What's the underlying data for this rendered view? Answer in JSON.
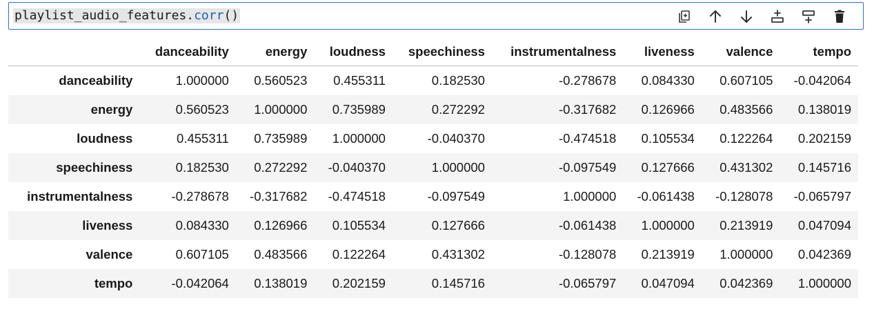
{
  "cell": {
    "code_object": "playlist_audio_features.",
    "code_method": "corr",
    "code_parens": "()"
  },
  "toolbar": {
    "icons": [
      "duplicate-icon",
      "move-up-icon",
      "move-down-icon",
      "insert-above-icon",
      "insert-below-icon",
      "delete-icon"
    ]
  },
  "table": {
    "columns": [
      "danceability",
      "energy",
      "loudness",
      "speechiness",
      "instrumentalness",
      "liveness",
      "valence",
      "tempo"
    ],
    "rows": [
      {
        "label": "danceability",
        "values": [
          "1.000000",
          "0.560523",
          "0.455311",
          "0.182530",
          "-0.278678",
          "0.084330",
          "0.607105",
          "-0.042064"
        ]
      },
      {
        "label": "energy",
        "values": [
          "0.560523",
          "1.000000",
          "0.735989",
          "0.272292",
          "-0.317682",
          "0.126966",
          "0.483566",
          "0.138019"
        ]
      },
      {
        "label": "loudness",
        "values": [
          "0.455311",
          "0.735989",
          "1.000000",
          "-0.040370",
          "-0.474518",
          "0.105534",
          "0.122264",
          "0.202159"
        ]
      },
      {
        "label": "speechiness",
        "values": [
          "0.182530",
          "0.272292",
          "-0.040370",
          "1.000000",
          "-0.097549",
          "0.127666",
          "0.431302",
          "0.145716"
        ]
      },
      {
        "label": "instrumentalness",
        "values": [
          "-0.278678",
          "-0.317682",
          "-0.474518",
          "-0.097549",
          "1.000000",
          "-0.061438",
          "-0.128078",
          "-0.065797"
        ]
      },
      {
        "label": "liveness",
        "values": [
          "0.084330",
          "0.126966",
          "0.105534",
          "0.127666",
          "-0.061438",
          "1.000000",
          "0.213919",
          "0.047094"
        ]
      },
      {
        "label": "valence",
        "values": [
          "0.607105",
          "0.483566",
          "0.122264",
          "0.431302",
          "-0.128078",
          "0.213919",
          "1.000000",
          "0.042369"
        ]
      },
      {
        "label": "tempo",
        "values": [
          "-0.042064",
          "0.138019",
          "0.202159",
          "0.145716",
          "-0.065797",
          "0.047094",
          "0.042369",
          "1.000000"
        ]
      }
    ]
  }
}
